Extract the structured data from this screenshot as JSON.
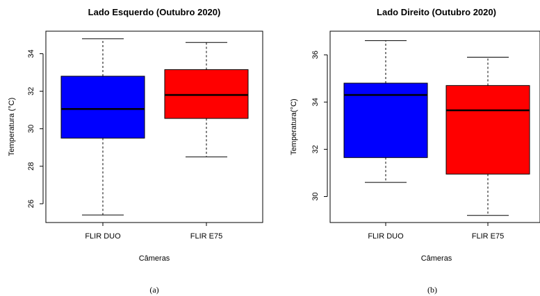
{
  "chart_data": [
    {
      "type": "boxplot",
      "title": "Lado Esquerdo (Outubro 2020)",
      "xlabel": "Câmeras",
      "ylabel": "Temperatura (°C)",
      "ylim": [
        25,
        35.2
      ],
      "yticks": [
        26,
        28,
        30,
        32,
        34
      ],
      "categories": [
        "FLIR DUO",
        "FLIR E75"
      ],
      "boxes": [
        {
          "name": "FLIR DUO",
          "color": "#0000ff",
          "min": 25.4,
          "q1": 29.5,
          "median": 31.05,
          "q3": 32.8,
          "max": 34.8
        },
        {
          "name": "FLIR E75",
          "color": "#ff0000",
          "min": 28.5,
          "q1": 30.55,
          "median": 31.8,
          "q3": 33.15,
          "max": 34.6
        }
      ],
      "caption": "(a)"
    },
    {
      "type": "boxplot",
      "title": "Lado Direito (Outubro 2020)",
      "xlabel": "Câmeras",
      "ylabel": "Temperatura(°C)",
      "ylim": [
        28.9,
        37.0
      ],
      "yticks": [
        30,
        32,
        34,
        36
      ],
      "categories": [
        "FLIR DUO",
        "FLIR E75"
      ],
      "boxes": [
        {
          "name": "FLIR DUO",
          "color": "#0000ff",
          "min": 30.6,
          "q1": 31.65,
          "median": 34.3,
          "q3": 34.8,
          "max": 36.6
        },
        {
          "name": "FLIR E75",
          "color": "#ff0000",
          "min": 29.2,
          "q1": 30.95,
          "median": 33.65,
          "q3": 34.7,
          "max": 35.9
        }
      ],
      "caption": "(b)"
    }
  ]
}
